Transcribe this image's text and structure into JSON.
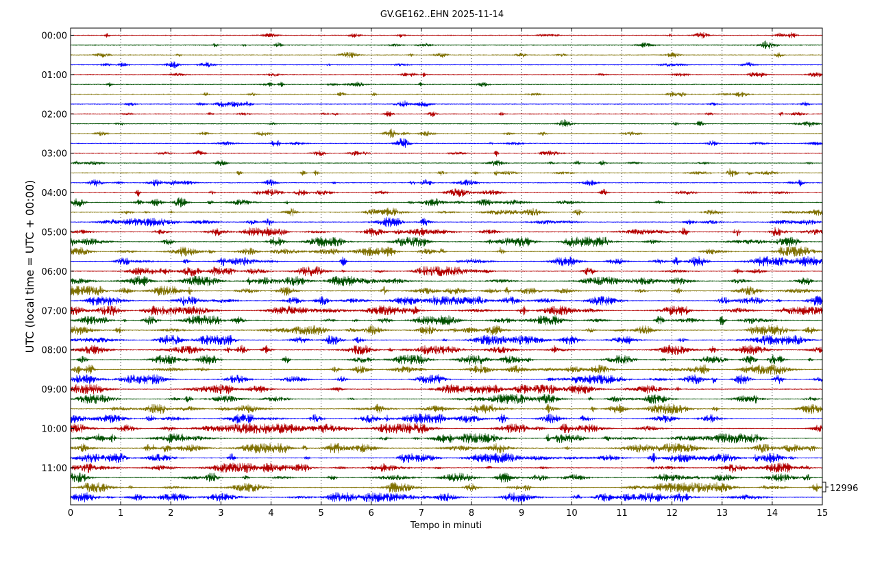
{
  "chart_data": {
    "type": "line",
    "title": "GV.GE162..EHN 2025-11-14",
    "xlabel": "Tempo in minuti",
    "ylabel": "UTC (local time = UTC + 00:00)",
    "xlim": [
      0,
      15
    ],
    "x_ticks": [
      "0",
      "1",
      "2",
      "3",
      "4",
      "5",
      "6",
      "7",
      "8",
      "9",
      "10",
      "11",
      "12",
      "13",
      "14",
      "15"
    ],
    "y_ticks": [
      "00:00",
      "01:00",
      "02:00",
      "03:00",
      "04:00",
      "05:00",
      "06:00",
      "07:00",
      "08:00",
      "09:00",
      "10:00",
      "11:00"
    ],
    "trace_count": 48,
    "trace_interval_minutes": 15,
    "trace_colors": [
      "#b30000",
      "#005000",
      "#7f7000",
      "#0000ff"
    ],
    "scale_label": "12996",
    "grid": "dotted vertical lines at each minute",
    "activity_by_trace": [
      0.12,
      0.1,
      0.12,
      0.13,
      0.14,
      0.11,
      0.1,
      0.16,
      0.15,
      0.11,
      0.12,
      0.17,
      0.14,
      0.16,
      0.24,
      0.25,
      0.3,
      0.38,
      0.36,
      0.45,
      0.55,
      0.6,
      0.55,
      0.55,
      0.6,
      0.65,
      0.62,
      0.6,
      0.65,
      0.62,
      0.55,
      0.65,
      0.6,
      0.62,
      0.55,
      0.6,
      0.6,
      0.55,
      0.6,
      0.58,
      0.62,
      0.65,
      0.6,
      0.58,
      0.62,
      0.6,
      0.55,
      0.65
    ]
  }
}
